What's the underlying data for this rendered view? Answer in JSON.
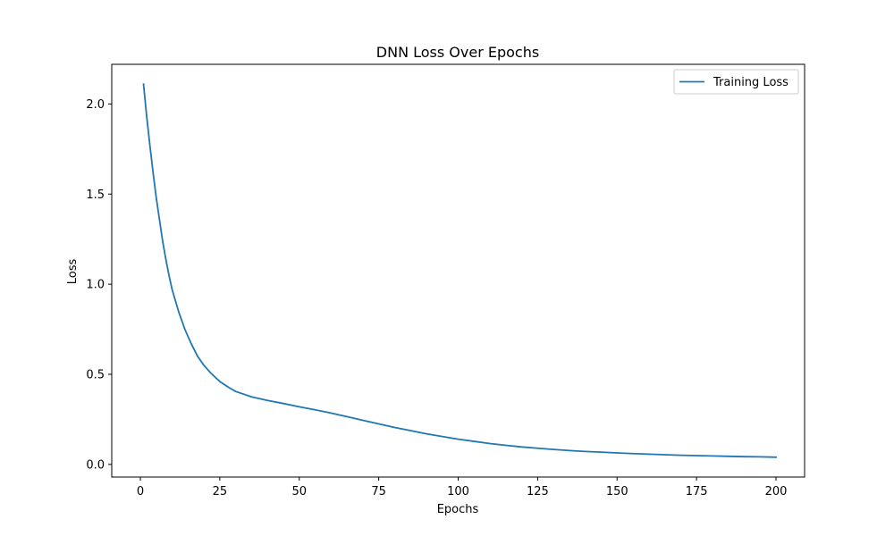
{
  "chart_data": {
    "type": "line",
    "title": "DNN Loss Over Epochs",
    "xlabel": "Epochs",
    "ylabel": "Loss",
    "xlim": [
      -9,
      209
    ],
    "ylim": [
      -0.07,
      2.22
    ],
    "xticks": [
      0,
      25,
      50,
      75,
      100,
      125,
      150,
      175,
      200
    ],
    "yticks": [
      0.0,
      0.5,
      1.0,
      1.5,
      2.0
    ],
    "ytick_labels": [
      "0.0",
      "0.5",
      "1.0",
      "1.5",
      "2.0"
    ],
    "grid": false,
    "legend_position": "top-right",
    "series": [
      {
        "name": "Training Loss",
        "color": "#1f77b4",
        "x": [
          1,
          2,
          3,
          4,
          5,
          6,
          7,
          8,
          9,
          10,
          12,
          14,
          16,
          18,
          20,
          22,
          25,
          28,
          30,
          35,
          40,
          45,
          50,
          55,
          60,
          65,
          70,
          75,
          80,
          85,
          90,
          95,
          100,
          105,
          110,
          115,
          120,
          125,
          130,
          135,
          140,
          145,
          150,
          155,
          160,
          165,
          170,
          175,
          180,
          185,
          190,
          195,
          200
        ],
        "y": [
          2.11,
          1.93,
          1.77,
          1.62,
          1.48,
          1.36,
          1.24,
          1.14,
          1.05,
          0.97,
          0.85,
          0.75,
          0.67,
          0.6,
          0.55,
          0.51,
          0.46,
          0.425,
          0.405,
          0.375,
          0.355,
          0.338,
          0.32,
          0.303,
          0.285,
          0.265,
          0.245,
          0.225,
          0.205,
          0.188,
          0.17,
          0.155,
          0.14,
          0.128,
          0.116,
          0.106,
          0.097,
          0.09,
          0.083,
          0.077,
          0.072,
          0.068,
          0.064,
          0.06,
          0.057,
          0.054,
          0.051,
          0.049,
          0.047,
          0.045,
          0.043,
          0.042,
          0.04
        ]
      }
    ]
  }
}
